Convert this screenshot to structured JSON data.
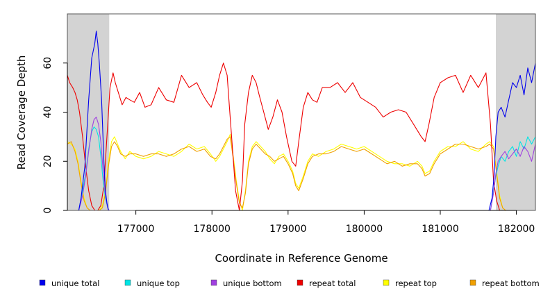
{
  "chart_data": {
    "type": "line",
    "title": "",
    "xlabel": "Coordinate in Reference Genome",
    "ylabel": "Read Coverage Depth",
    "xlim": [
      176100,
      182250
    ],
    "ylim": [
      0,
      80
    ],
    "xticks": [
      177000,
      178000,
      179000,
      180000,
      181000,
      182000
    ],
    "xtick_labels": [
      "177000",
      "178000",
      "179000",
      "180000",
      "181000",
      "182000"
    ],
    "yticks": [
      0,
      20,
      40,
      60
    ],
    "ytick_labels": [
      "0",
      "20",
      "40",
      "60"
    ],
    "shaded_regions": [
      [
        176100,
        176650
      ],
      [
        181730,
        182250
      ]
    ],
    "colors": {
      "unique_total": "#0000ee",
      "unique_top": "#00e5e5",
      "unique_bottom": "#a040e0",
      "repeat_total": "#ee0000",
      "repeat_top": "#ffff00",
      "repeat_bottom": "#f0a000",
      "shade": "#d3d3d3"
    },
    "legend": [
      {
        "key": "unique_total",
        "label": "unique total"
      },
      {
        "key": "unique_top",
        "label": "unique top"
      },
      {
        "key": "unique_bottom",
        "label": "unique bottom"
      },
      {
        "key": "repeat_total",
        "label": "repeat total"
      },
      {
        "key": "repeat_top",
        "label": "repeat top"
      },
      {
        "key": "repeat_bottom",
        "label": "repeat bottom"
      }
    ],
    "series": [
      {
        "key": "unique_total",
        "name": "unique total",
        "x": [
          176100,
          176250,
          176280,
          176330,
          176380,
          176420,
          176460,
          176480,
          176500,
          176520,
          176550,
          176580,
          176600,
          176620,
          176640,
          176650,
          181640,
          181680,
          181710,
          181730,
          181760,
          181800,
          181850,
          181900,
          181950,
          182000,
          182050,
          182100,
          182150,
          182200,
          182250
        ],
        "y": [
          0,
          0,
          5,
          18,
          45,
          62,
          68,
          73,
          68,
          60,
          45,
          20,
          8,
          3,
          0,
          0,
          0,
          5,
          15,
          30,
          40,
          42,
          38,
          45,
          52,
          50,
          55,
          47,
          58,
          52,
          60
        ]
      },
      {
        "key": "unique_top",
        "name": "unique top",
        "x": [
          176100,
          176250,
          176300,
          176340,
          176380,
          176420,
          176450,
          176480,
          176510,
          176540,
          176570,
          176600,
          176630,
          176650,
          181660,
          181700,
          181730,
          181760,
          181800,
          181850,
          181900,
          181950,
          182000,
          182050,
          182100,
          182150,
          182200,
          182250
        ],
        "y": [
          0,
          0,
          8,
          15,
          25,
          32,
          34,
          33,
          30,
          22,
          12,
          5,
          1,
          0,
          0,
          8,
          14,
          18,
          22,
          20,
          24,
          26,
          22,
          28,
          25,
          30,
          27,
          30
        ]
      },
      {
        "key": "unique_bottom",
        "name": "unique bottom",
        "x": [
          176100,
          176250,
          176300,
          176340,
          176380,
          176420,
          176450,
          176480,
          176510,
          176540,
          176570,
          176600,
          176630,
          176650,
          181660,
          181700,
          181730,
          181760,
          181800,
          181850,
          181900,
          181950,
          182000,
          182050,
          182100,
          182150,
          182200,
          182250
        ],
        "y": [
          0,
          0,
          6,
          14,
          24,
          33,
          37,
          38,
          35,
          28,
          16,
          6,
          1,
          0,
          0,
          7,
          15,
          20,
          22,
          24,
          21,
          23,
          25,
          22,
          26,
          24,
          20,
          27
        ]
      },
      {
        "key": "repeat_total",
        "name": "repeat total",
        "x": [
          176100,
          176130,
          176170,
          176200,
          176230,
          176260,
          176300,
          176340,
          176380,
          176420,
          176460,
          176500,
          176540,
          176580,
          176620,
          176660,
          176700,
          176730,
          176770,
          176820,
          176870,
          176920,
          176980,
          177050,
          177120,
          177200,
          177300,
          177400,
          177500,
          177600,
          177700,
          177800,
          177880,
          177940,
          177990,
          178050,
          178100,
          178150,
          178200,
          178230,
          178270,
          178310,
          178360,
          178400,
          178430,
          178480,
          178530,
          178580,
          178620,
          178680,
          178740,
          178800,
          178860,
          178920,
          178980,
          179050,
          179100,
          179140,
          179200,
          179260,
          179320,
          179380,
          179450,
          179550,
          179650,
          179750,
          179850,
          179950,
          180050,
          180150,
          180250,
          180350,
          180450,
          180550,
          180650,
          180750,
          180800,
          180850,
          180920,
          181000,
          181100,
          181200,
          181300,
          181400,
          181500,
          181600,
          181660,
          181700,
          181740,
          181780,
          181820,
          181860,
          181900,
          182250
        ],
        "y": [
          55,
          52,
          50,
          48,
          45,
          40,
          30,
          18,
          8,
          2,
          0,
          0,
          2,
          10,
          30,
          50,
          56,
          52,
          48,
          43,
          46,
          45,
          44,
          48,
          42,
          43,
          50,
          45,
          44,
          55,
          50,
          52,
          47,
          44,
          42,
          48,
          55,
          60,
          55,
          42,
          25,
          8,
          0,
          12,
          35,
          48,
          55,
          52,
          47,
          40,
          33,
          38,
          45,
          40,
          30,
          20,
          18,
          28,
          42,
          48,
          45,
          44,
          50,
          50,
          52,
          48,
          52,
          46,
          44,
          42,
          38,
          40,
          41,
          40,
          35,
          30,
          28,
          35,
          46,
          52,
          54,
          55,
          48,
          55,
          50,
          56,
          35,
          12,
          4,
          0,
          0,
          0,
          0,
          0
        ]
      },
      {
        "key": "repeat_top",
        "name": "repeat top",
        "x": [
          176100,
          176150,
          176200,
          176240,
          176280,
          176320,
          176360,
          176400,
          176440,
          176480,
          176520,
          176560,
          176600,
          176640,
          176680,
          176720,
          176760,
          176800,
          176860,
          176920,
          177000,
          177100,
          177200,
          177300,
          177400,
          177500,
          177600,
          177700,
          177800,
          177900,
          177980,
          178050,
          178100,
          178150,
          178200,
          178240,
          178280,
          178320,
          178360,
          178400,
          178440,
          178480,
          178530,
          178580,
          178640,
          178700,
          178760,
          178820,
          178880,
          178940,
          179000,
          179060,
          179100,
          179140,
          179200,
          179260,
          179320,
          179400,
          179500,
          179600,
          179700,
          179800,
          179900,
          180000,
          180100,
          180200,
          180300,
          180400,
          180500,
          180600,
          180700,
          180760,
          180800,
          180860,
          180920,
          181000,
          181100,
          181200,
          181300,
          181400,
          181500,
          181600,
          181650,
          181700,
          181740,
          181780,
          181820,
          181860,
          181900,
          182250
        ],
        "y": [
          28,
          27,
          25,
          20,
          12,
          5,
          1,
          0,
          0,
          0,
          0,
          2,
          8,
          20,
          28,
          30,
          27,
          24,
          21,
          24,
          22,
          21,
          22,
          24,
          23,
          22,
          24,
          27,
          25,
          26,
          23,
          20,
          22,
          25,
          28,
          31,
          22,
          12,
          4,
          0,
          8,
          20,
          26,
          28,
          26,
          24,
          21,
          19,
          22,
          23,
          20,
          16,
          11,
          9,
          14,
          20,
          23,
          22,
          24,
          25,
          27,
          26,
          25,
          26,
          24,
          22,
          20,
          19,
          19,
          18,
          20,
          18,
          15,
          16,
          20,
          24,
          26,
          26,
          28,
          25,
          24,
          27,
          28,
          26,
          16,
          6,
          1,
          0,
          0,
          0
        ]
      },
      {
        "key": "repeat_bottom",
        "name": "repeat bottom",
        "x": [
          176100,
          176150,
          176200,
          176240,
          176280,
          176320,
          176360,
          176400,
          176440,
          176480,
          176520,
          176560,
          176600,
          176640,
          176680,
          176720,
          176760,
          176800,
          176860,
          176920,
          177000,
          177100,
          177200,
          177300,
          177400,
          177500,
          177600,
          177700,
          177800,
          177900,
          177980,
          178050,
          178100,
          178150,
          178200,
          178240,
          178280,
          178320,
          178360,
          178400,
          178440,
          178480,
          178530,
          178580,
          178640,
          178700,
          178760,
          178820,
          178880,
          178940,
          179000,
          179060,
          179100,
          179140,
          179200,
          179260,
          179320,
          179400,
          179500,
          179600,
          179700,
          179800,
          179900,
          180000,
          180100,
          180200,
          180300,
          180400,
          180500,
          180600,
          180700,
          180760,
          180800,
          180860,
          180920,
          181000,
          181100,
          181200,
          181300,
          181400,
          181500,
          181600,
          181650,
          181700,
          181740,
          181780,
          181820,
          181860,
          181900,
          182250
        ],
        "y": [
          27,
          28,
          24,
          19,
          11,
          4,
          1,
          0,
          0,
          0,
          0,
          1,
          7,
          18,
          26,
          28,
          26,
          23,
          22,
          23,
          23,
          22,
          23,
          23,
          22,
          23,
          25,
          26,
          24,
          25,
          22,
          21,
          23,
          26,
          29,
          30,
          21,
          11,
          3,
          1,
          7,
          19,
          25,
          27,
          25,
          23,
          22,
          20,
          21,
          22,
          19,
          15,
          10,
          8,
          13,
          19,
          22,
          23,
          23,
          24,
          26,
          25,
          24,
          25,
          23,
          21,
          19,
          20,
          18,
          19,
          19,
          17,
          14,
          15,
          19,
          23,
          25,
          27,
          27,
          26,
          25,
          26,
          27,
          25,
          15,
          5,
          1,
          0,
          0,
          0
        ]
      }
    ]
  }
}
